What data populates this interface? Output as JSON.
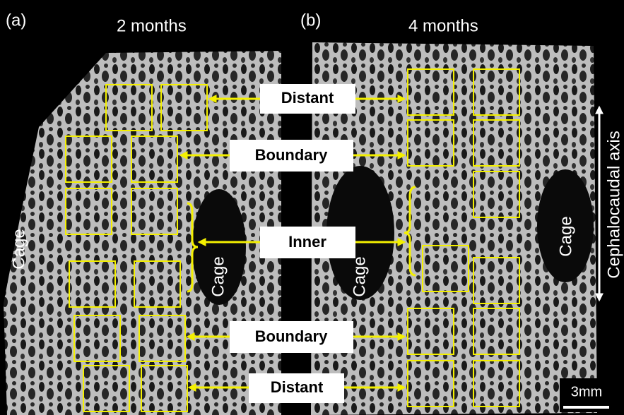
{
  "panels": [
    {
      "label": "(a)",
      "title": "2 months",
      "cage_labels": [
        "Cage",
        "Cage"
      ]
    },
    {
      "label": "(b)",
      "title": "4 months",
      "cage_labels": [
        "Cage",
        "Cage"
      ]
    }
  ],
  "region_labels": [
    "Distant",
    "Boundary",
    "Inner",
    "Boundary",
    "Distant"
  ],
  "axis_label": "Cephalocaudal axis",
  "scale_bar": "3mm"
}
